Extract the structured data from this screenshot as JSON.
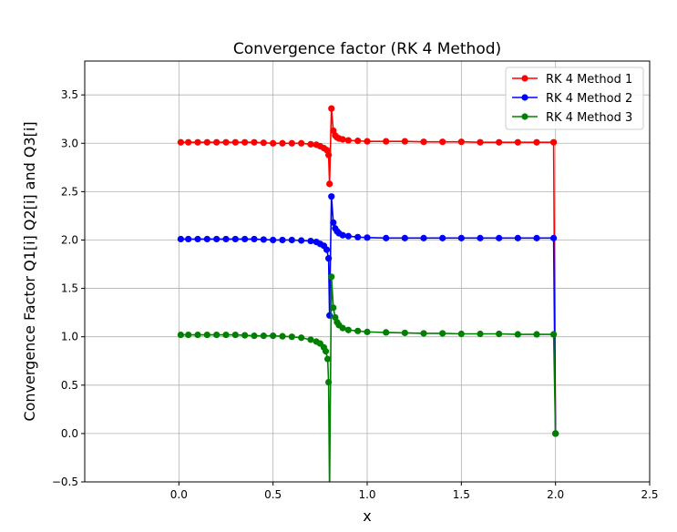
{
  "chart_data": {
    "type": "line",
    "title": "Convergence factor (RK 4 Method)",
    "xlabel": "x",
    "ylabel": "Convergence Factor Q1[i] Q2[i] and Q3[i]",
    "xlim": [
      -0.5,
      2.5
    ],
    "ylim": [
      -0.5,
      3.85
    ],
    "xticks": [
      "0.0",
      "0.5",
      "1.0",
      "1.5",
      "2.0",
      "2.5"
    ],
    "yticks": [
      "−0.5",
      "0.0",
      "0.5",
      "1.0",
      "1.5",
      "2.0",
      "2.5",
      "3.0",
      "3.5"
    ],
    "grid": true,
    "legend_position": "top-right",
    "marker": "circle",
    "series": [
      {
        "name": "RK 4 Method 1",
        "color": "#ff0000",
        "points": [
          [
            0.01,
            3.01
          ],
          [
            0.05,
            3.01
          ],
          [
            0.1,
            3.01
          ],
          [
            0.15,
            3.01
          ],
          [
            0.2,
            3.01
          ],
          [
            0.25,
            3.01
          ],
          [
            0.3,
            3.01
          ],
          [
            0.35,
            3.01
          ],
          [
            0.4,
            3.01
          ],
          [
            0.45,
            3.005
          ],
          [
            0.5,
            3.0
          ],
          [
            0.55,
            3.0
          ],
          [
            0.6,
            3.0
          ],
          [
            0.65,
            3.0
          ],
          [
            0.7,
            2.99
          ],
          [
            0.73,
            2.985
          ],
          [
            0.75,
            2.97
          ],
          [
            0.77,
            2.95
          ],
          [
            0.785,
            2.93
          ],
          [
            0.795,
            2.88
          ],
          [
            0.8,
            2.58
          ],
          [
            0.81,
            3.36
          ],
          [
            0.82,
            3.13
          ],
          [
            0.83,
            3.08
          ],
          [
            0.84,
            3.06
          ],
          [
            0.85,
            3.05
          ],
          [
            0.87,
            3.04
          ],
          [
            0.9,
            3.03
          ],
          [
            0.95,
            3.025
          ],
          [
            1.0,
            3.02
          ],
          [
            1.1,
            3.02
          ],
          [
            1.2,
            3.02
          ],
          [
            1.3,
            3.015
          ],
          [
            1.4,
            3.015
          ],
          [
            1.5,
            3.015
          ],
          [
            1.6,
            3.01
          ],
          [
            1.7,
            3.01
          ],
          [
            1.8,
            3.01
          ],
          [
            1.9,
            3.01
          ],
          [
            1.99,
            3.01
          ],
          [
            2.0,
            0.0
          ]
        ]
      },
      {
        "name": "RK 4 Method 2",
        "color": "#0000ff",
        "points": [
          [
            0.01,
            2.01
          ],
          [
            0.05,
            2.01
          ],
          [
            0.1,
            2.01
          ],
          [
            0.15,
            2.01
          ],
          [
            0.2,
            2.01
          ],
          [
            0.25,
            2.01
          ],
          [
            0.3,
            2.01
          ],
          [
            0.35,
            2.01
          ],
          [
            0.4,
            2.01
          ],
          [
            0.45,
            2.005
          ],
          [
            0.5,
            2.0
          ],
          [
            0.55,
            2.0
          ],
          [
            0.6,
            2.0
          ],
          [
            0.65,
            1.995
          ],
          [
            0.7,
            1.99
          ],
          [
            0.73,
            1.98
          ],
          [
            0.75,
            1.96
          ],
          [
            0.77,
            1.94
          ],
          [
            0.785,
            1.9
          ],
          [
            0.795,
            1.81
          ],
          [
            0.8,
            1.22
          ],
          [
            0.81,
            2.45
          ],
          [
            0.82,
            2.18
          ],
          [
            0.83,
            2.12
          ],
          [
            0.84,
            2.09
          ],
          [
            0.85,
            2.07
          ],
          [
            0.87,
            2.05
          ],
          [
            0.9,
            2.04
          ],
          [
            0.95,
            2.03
          ],
          [
            1.0,
            2.025
          ],
          [
            1.1,
            2.02
          ],
          [
            1.2,
            2.02
          ],
          [
            1.3,
            2.02
          ],
          [
            1.4,
            2.02
          ],
          [
            1.5,
            2.02
          ],
          [
            1.6,
            2.02
          ],
          [
            1.7,
            2.02
          ],
          [
            1.8,
            2.02
          ],
          [
            1.9,
            2.02
          ],
          [
            1.99,
            2.02
          ],
          [
            2.0,
            0.0
          ]
        ]
      },
      {
        "name": "RK 4 Method 3",
        "color": "#008000",
        "points": [
          [
            0.01,
            1.02
          ],
          [
            0.05,
            1.02
          ],
          [
            0.1,
            1.02
          ],
          [
            0.15,
            1.02
          ],
          [
            0.2,
            1.02
          ],
          [
            0.25,
            1.02
          ],
          [
            0.3,
            1.02
          ],
          [
            0.35,
            1.015
          ],
          [
            0.4,
            1.01
          ],
          [
            0.45,
            1.01
          ],
          [
            0.5,
            1.01
          ],
          [
            0.55,
            1.005
          ],
          [
            0.6,
            1.0
          ],
          [
            0.65,
            0.99
          ],
          [
            0.7,
            0.97
          ],
          [
            0.73,
            0.95
          ],
          [
            0.75,
            0.93
          ],
          [
            0.77,
            0.89
          ],
          [
            0.78,
            0.85
          ],
          [
            0.79,
            0.77
          ],
          [
            0.795,
            0.53
          ],
          [
            0.8,
            -0.6
          ],
          [
            0.81,
            1.62
          ],
          [
            0.82,
            1.3
          ],
          [
            0.83,
            1.2
          ],
          [
            0.84,
            1.15
          ],
          [
            0.85,
            1.12
          ],
          [
            0.87,
            1.09
          ],
          [
            0.9,
            1.07
          ],
          [
            0.95,
            1.06
          ],
          [
            1.0,
            1.05
          ],
          [
            1.1,
            1.045
          ],
          [
            1.2,
            1.04
          ],
          [
            1.3,
            1.035
          ],
          [
            1.4,
            1.035
          ],
          [
            1.5,
            1.03
          ],
          [
            1.6,
            1.03
          ],
          [
            1.7,
            1.03
          ],
          [
            1.8,
            1.025
          ],
          [
            1.9,
            1.025
          ],
          [
            1.99,
            1.025
          ],
          [
            2.0,
            0.0
          ]
        ]
      }
    ]
  }
}
